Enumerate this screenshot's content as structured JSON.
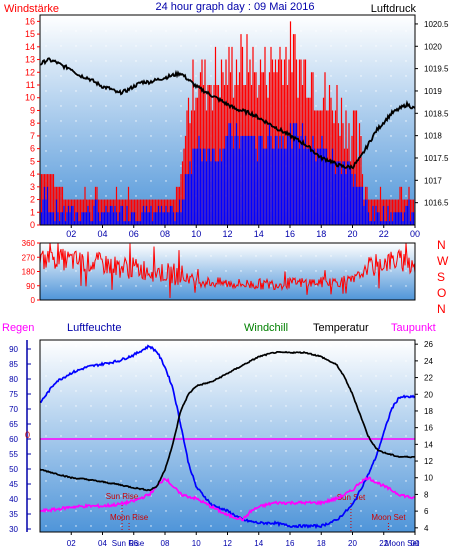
{
  "title": "24 hour graph day : 09 Mai 2016",
  "colors": {
    "wind": "#ff0000",
    "gust_bar": "#ff0000",
    "avg_bar": "#0000ff",
    "pressure": "#000000",
    "direction": "#ff0000",
    "humidity": "#0000ff",
    "temperature": "#000000",
    "dewpoint": "#ff00ff",
    "windchill": "#008000",
    "rain_line": "#ff00ff",
    "astro": "#cc0000",
    "axis_blue": "#0000aa",
    "gradient_top": "#ffffff",
    "gradient_bottom": "#4f95d9"
  },
  "chart_data": [
    {
      "type": "bar",
      "name": "wind-pressure",
      "labels": {
        "left": "Windstärke",
        "right": "Luftdruck"
      },
      "x_ticks": [
        "02",
        "04",
        "06",
        "08",
        "10",
        "12",
        "14",
        "16",
        "18",
        "20",
        "22",
        "00"
      ],
      "x_range": [
        0,
        24
      ],
      "y_left": {
        "range": [
          0,
          16.5
        ],
        "ticks": [
          0,
          1,
          2,
          3,
          4,
          5,
          6,
          7,
          8,
          9,
          10,
          11,
          12,
          13,
          14,
          15,
          16
        ]
      },
      "y_right": {
        "range": [
          1016.0,
          1020.7
        ],
        "ticks": [
          "1016.5",
          "1017",
          "1017.5",
          "1018",
          "1018.5",
          "1019",
          "1019.5",
          "1020",
          "1020.5"
        ]
      },
      "gust_profile": [
        [
          0.0,
          4
        ],
        [
          0.5,
          4
        ],
        [
          1.0,
          3
        ],
        [
          1.5,
          2
        ],
        [
          2.0,
          2
        ],
        [
          2.5,
          2
        ],
        [
          3.0,
          2
        ],
        [
          3.5,
          2
        ],
        [
          4.0,
          2
        ],
        [
          4.5,
          2
        ],
        [
          5.0,
          2
        ],
        [
          5.5,
          2
        ],
        [
          6.0,
          2
        ],
        [
          6.5,
          2
        ],
        [
          7.0,
          2
        ],
        [
          7.5,
          2
        ],
        [
          8.0,
          1.5
        ],
        [
          8.5,
          1.5
        ],
        [
          9.0,
          3
        ],
        [
          9.5,
          9
        ],
        [
          10.0,
          11
        ],
        [
          10.5,
          11
        ],
        [
          11.0,
          11
        ],
        [
          11.5,
          11
        ],
        [
          12.0,
          12
        ],
        [
          12.5,
          12
        ],
        [
          13.0,
          12
        ],
        [
          13.5,
          12
        ],
        [
          14.0,
          11
        ],
        [
          14.5,
          12
        ],
        [
          15.0,
          12
        ],
        [
          15.5,
          13
        ],
        [
          16.0,
          13
        ],
        [
          16.5,
          12
        ],
        [
          17.0,
          12
        ],
        [
          17.5,
          11
        ],
        [
          18.0,
          10
        ],
        [
          18.5,
          9
        ],
        [
          19.0,
          9
        ],
        [
          19.5,
          8
        ],
        [
          20.0,
          7
        ],
        [
          20.5,
          5
        ],
        [
          21.0,
          2
        ],
        [
          21.5,
          2
        ],
        [
          22.0,
          2
        ],
        [
          22.5,
          2
        ],
        [
          23.0,
          2
        ],
        [
          23.5,
          2
        ],
        [
          24.0,
          2
        ]
      ],
      "avg_profile": [
        [
          0.0,
          2
        ],
        [
          0.5,
          2
        ],
        [
          1.0,
          1
        ],
        [
          1.5,
          1
        ],
        [
          2.0,
          1
        ],
        [
          2.5,
          1
        ],
        [
          3.0,
          1
        ],
        [
          3.5,
          1
        ],
        [
          4.0,
          1
        ],
        [
          4.5,
          1
        ],
        [
          5.0,
          1
        ],
        [
          5.5,
          1
        ],
        [
          6.0,
          1
        ],
        [
          6.5,
          1
        ],
        [
          7.0,
          1
        ],
        [
          7.5,
          1
        ],
        [
          8.0,
          0.8
        ],
        [
          8.5,
          0.8
        ],
        [
          9.0,
          1
        ],
        [
          9.5,
          5
        ],
        [
          10.0,
          6
        ],
        [
          10.5,
          6
        ],
        [
          11.0,
          6
        ],
        [
          11.5,
          6
        ],
        [
          12.0,
          7
        ],
        [
          12.5,
          7
        ],
        [
          13.0,
          7
        ],
        [
          13.5,
          7
        ],
        [
          14.0,
          6
        ],
        [
          14.5,
          7
        ],
        [
          15.0,
          7
        ],
        [
          15.5,
          7
        ],
        [
          16.0,
          7
        ],
        [
          16.5,
          7
        ],
        [
          17.0,
          7
        ],
        [
          17.5,
          6
        ],
        [
          18.0,
          6
        ],
        [
          18.5,
          5
        ],
        [
          19.0,
          5
        ],
        [
          19.5,
          5
        ],
        [
          20.0,
          4
        ],
        [
          20.5,
          3
        ],
        [
          21.0,
          1
        ],
        [
          21.5,
          1
        ],
        [
          22.0,
          1
        ],
        [
          22.5,
          1
        ],
        [
          23.0,
          1
        ],
        [
          23.5,
          1
        ],
        [
          24.0,
          1
        ]
      ],
      "pressure": [
        [
          0.0,
          1019.6
        ],
        [
          0.5,
          1019.7
        ],
        [
          1.0,
          1019.65
        ],
        [
          1.5,
          1019.55
        ],
        [
          2.0,
          1019.5
        ],
        [
          2.5,
          1019.35
        ],
        [
          3.0,
          1019.3
        ],
        [
          3.5,
          1019.2
        ],
        [
          4.0,
          1019.1
        ],
        [
          4.5,
          1019.05
        ],
        [
          5.0,
          1018.95
        ],
        [
          5.5,
          1019.0
        ],
        [
          6.0,
          1019.1
        ],
        [
          6.5,
          1019.2
        ],
        [
          7.0,
          1019.2
        ],
        [
          7.5,
          1019.25
        ],
        [
          8.0,
          1019.3
        ],
        [
          8.5,
          1019.35
        ],
        [
          9.0,
          1019.4
        ],
        [
          9.5,
          1019.25
        ],
        [
          10.0,
          1019.1
        ],
        [
          10.5,
          1019.0
        ],
        [
          11.0,
          1018.9
        ],
        [
          11.5,
          1018.8
        ],
        [
          12.0,
          1018.7
        ],
        [
          12.5,
          1018.6
        ],
        [
          13.0,
          1018.55
        ],
        [
          13.5,
          1018.5
        ],
        [
          14.0,
          1018.4
        ],
        [
          14.5,
          1018.3
        ],
        [
          15.0,
          1018.2
        ],
        [
          15.5,
          1018.1
        ],
        [
          16.0,
          1018.0
        ],
        [
          16.5,
          1017.9
        ],
        [
          17.0,
          1017.8
        ],
        [
          17.5,
          1017.65
        ],
        [
          18.0,
          1017.5
        ],
        [
          18.5,
          1017.45
        ],
        [
          19.0,
          1017.35
        ],
        [
          19.5,
          1017.3
        ],
        [
          20.0,
          1017.3
        ],
        [
          20.5,
          1017.5
        ],
        [
          21.0,
          1017.8
        ],
        [
          21.5,
          1018.1
        ],
        [
          22.0,
          1018.3
        ],
        [
          22.5,
          1018.5
        ],
        [
          23.0,
          1018.6
        ],
        [
          23.5,
          1018.7
        ],
        [
          24.0,
          1018.6
        ]
      ]
    },
    {
      "type": "line",
      "name": "wind-direction",
      "labels": {
        "right_letters": [
          "N",
          "W",
          "S",
          "O",
          "N"
        ]
      },
      "y_range": [
        0,
        360
      ],
      "y_ticks": [
        0,
        90,
        180,
        270,
        360
      ],
      "x_range": [
        0,
        24
      ],
      "direction_profile": [
        [
          0.0,
          250
        ],
        [
          1.0,
          260
        ],
        [
          2.0,
          250
        ],
        [
          3.0,
          240
        ],
        [
          4.0,
          230
        ],
        [
          5.0,
          210
        ],
        [
          6.0,
          200
        ],
        [
          7.0,
          190
        ],
        [
          8.0,
          170
        ],
        [
          9.0,
          160
        ],
        [
          10.0,
          120
        ],
        [
          11.0,
          110
        ],
        [
          12.0,
          105
        ],
        [
          13.0,
          100
        ],
        [
          14.0,
          100
        ],
        [
          15.0,
          100
        ],
        [
          16.0,
          105
        ],
        [
          17.0,
          110
        ],
        [
          18.0,
          110
        ],
        [
          19.0,
          115
        ],
        [
          20.0,
          120
        ],
        [
          21.0,
          200
        ],
        [
          22.0,
          240
        ],
        [
          23.0,
          250
        ],
        [
          24.0,
          230
        ]
      ]
    },
    {
      "type": "line",
      "name": "humidity-temperature",
      "labels": {
        "regen": "Regen",
        "luftfeuchte": "Luftfeuchte",
        "windchill": "Windchill",
        "temperatur": "Temperatur",
        "taupunkt": "Taupunkt"
      },
      "x_range": [
        0,
        24
      ],
      "x_ticks": [
        "02",
        "04",
        "06",
        "08",
        "10",
        "12",
        "14",
        "16",
        "18",
        "20",
        "22",
        "00"
      ],
      "y_humidity": {
        "range": [
          29,
          93
        ],
        "ticks": [
          30,
          35,
          40,
          45,
          50,
          55,
          60,
          65,
          70,
          75,
          80,
          85,
          90
        ]
      },
      "y_temperature": {
        "range": [
          3.5,
          26.5
        ],
        "ticks": [
          4,
          6,
          8,
          10,
          12,
          14,
          16,
          18,
          20,
          22,
          24,
          26
        ]
      },
      "y_rain": {
        "ticks": [
          "0"
        ],
        "level": 60
      },
      "humidity": [
        [
          0.0,
          72
        ],
        [
          1.0,
          79
        ],
        [
          2.0,
          82
        ],
        [
          3.0,
          84
        ],
        [
          4.0,
          85
        ],
        [
          5.0,
          86
        ],
        [
          6.0,
          88
        ],
        [
          7.0,
          91
        ],
        [
          7.5,
          89
        ],
        [
          8.0,
          84
        ],
        [
          8.5,
          77
        ],
        [
          9.0,
          65
        ],
        [
          9.5,
          52
        ],
        [
          10.0,
          44
        ],
        [
          11.0,
          38
        ],
        [
          12.0,
          36
        ],
        [
          13.0,
          33
        ],
        [
          14.0,
          32
        ],
        [
          15.0,
          32
        ],
        [
          16.0,
          31
        ],
        [
          17.0,
          31
        ],
        [
          18.0,
          31
        ],
        [
          19.0,
          33
        ],
        [
          20.0,
          38
        ],
        [
          20.5,
          43
        ],
        [
          21.0,
          48
        ],
        [
          21.5,
          54
        ],
        [
          22.0,
          62
        ],
        [
          22.5,
          70
        ],
        [
          23.0,
          74
        ],
        [
          24.0,
          74
        ]
      ],
      "temperature": [
        [
          0.0,
          11
        ],
        [
          1.0,
          10.5
        ],
        [
          2.0,
          10
        ],
        [
          3.0,
          9.8
        ],
        [
          4.0,
          9.5
        ],
        [
          5.0,
          9.2
        ],
        [
          6.0,
          8.8
        ],
        [
          7.0,
          8.5
        ],
        [
          7.5,
          9
        ],
        [
          8.0,
          11
        ],
        [
          8.5,
          14
        ],
        [
          9.0,
          18
        ],
        [
          9.5,
          20
        ],
        [
          10.0,
          21
        ],
        [
          11.0,
          21.5
        ],
        [
          12.0,
          22.5
        ],
        [
          13.0,
          23.5
        ],
        [
          14.0,
          24.5
        ],
        [
          15.0,
          25
        ],
        [
          16.0,
          25
        ],
        [
          17.0,
          25
        ],
        [
          18.0,
          24.5
        ],
        [
          19.0,
          23.5
        ],
        [
          19.5,
          22
        ],
        [
          20.0,
          20
        ],
        [
          20.5,
          17.5
        ],
        [
          21.0,
          15
        ],
        [
          21.5,
          13.5
        ],
        [
          22.0,
          13
        ],
        [
          23.0,
          12.5
        ],
        [
          24.0,
          12.5
        ]
      ],
      "dewpoint": [
        [
          0.0,
          6
        ],
        [
          1.0,
          6.2
        ],
        [
          2.0,
          6.5
        ],
        [
          3.0,
          6.6
        ],
        [
          4.0,
          6.6
        ],
        [
          5.0,
          6.8
        ],
        [
          6.0,
          7.2
        ],
        [
          7.0,
          8
        ],
        [
          7.5,
          9
        ],
        [
          8.0,
          10
        ],
        [
          8.5,
          9
        ],
        [
          9.0,
          8
        ],
        [
          10.0,
          7.5
        ],
        [
          11.0,
          6.5
        ],
        [
          12.0,
          5.5
        ],
        [
          13.0,
          5
        ],
        [
          13.5,
          6
        ],
        [
          14.0,
          6.5
        ],
        [
          15.0,
          7
        ],
        [
          16.0,
          7
        ],
        [
          17.0,
          7
        ],
        [
          18.0,
          7
        ],
        [
          19.0,
          7.5
        ],
        [
          20.0,
          8.5
        ],
        [
          20.5,
          9.5
        ],
        [
          21.0,
          10
        ],
        [
          22.0,
          9
        ],
        [
          23.0,
          8
        ],
        [
          24.0,
          7.5
        ]
      ],
      "astro": {
        "sun_rise": {
          "label": "Sun Rise",
          "hour": 5.25
        },
        "moon_rise": {
          "label": "Moon Rise",
          "hour": 5.7
        },
        "sun_set": {
          "label": "Sun Set",
          "hour": 19.9
        },
        "moon_set": {
          "label": "Moon Set",
          "hour": 22.3
        }
      },
      "bottom_extra_labels": [
        "Sun Rise",
        "Moon Set"
      ]
    }
  ]
}
